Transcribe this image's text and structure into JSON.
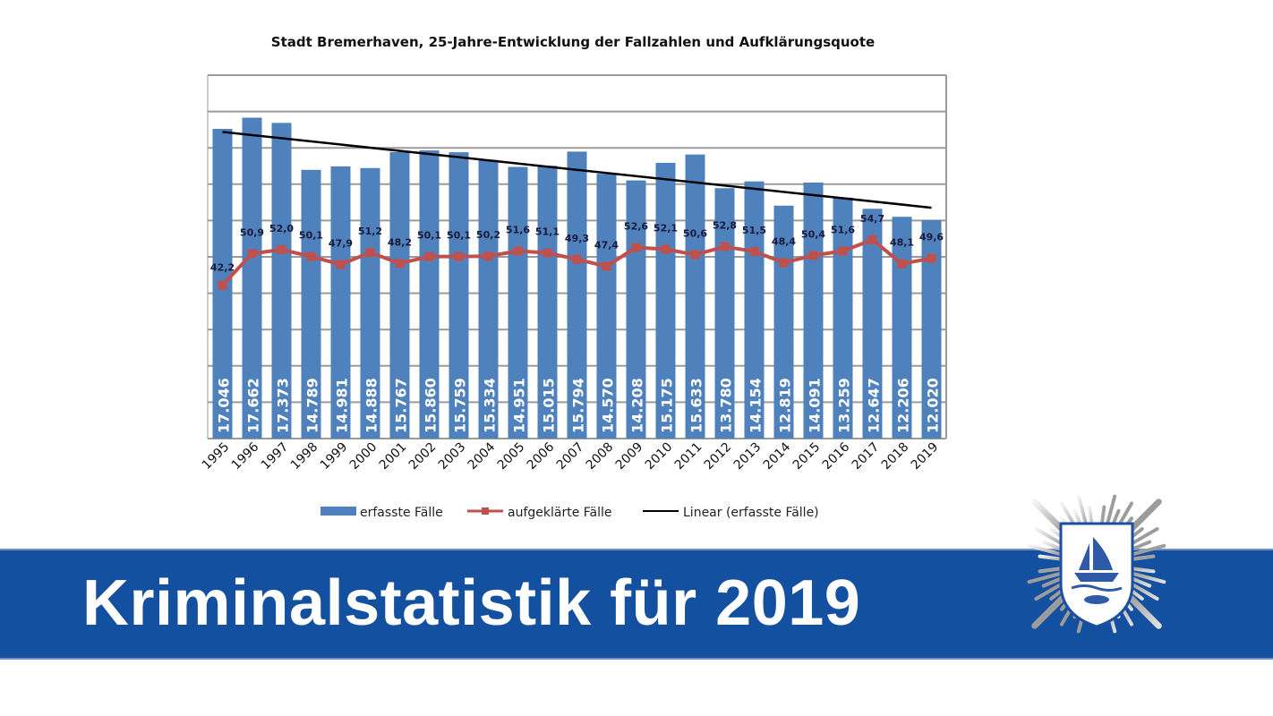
{
  "chart_data": {
    "type": "bar+line",
    "title": "Stadt Bremerhaven, 25-Jahre-Entwicklung der Fallzahlen und Aufklärungsquote",
    "categories": [
      "1995",
      "1996",
      "1997",
      "1998",
      "1999",
      "2000",
      "2001",
      "2002",
      "2003",
      "2004",
      "2005",
      "2006",
      "2007",
      "2008",
      "2009",
      "2010",
      "2011",
      "2012",
      "2013",
      "2014",
      "2015",
      "2016",
      "2017",
      "2018",
      "2019"
    ],
    "series": [
      {
        "name": "erfasste Fälle",
        "kind": "bar",
        "color": "#4f81bd",
        "values": [
          17046,
          17662,
          17373,
          14789,
          14981,
          14888,
          15767,
          15860,
          15759,
          15334,
          14951,
          15015,
          15794,
          14570,
          14208,
          15175,
          15633,
          13780,
          14154,
          12819,
          14091,
          13259,
          12647,
          12206,
          12020
        ],
        "labels": [
          "17.046",
          "17.662",
          "17.373",
          "14.789",
          "14.981",
          "14.888",
          "15.767",
          "15.860",
          "15.759",
          "15.334",
          "14.951",
          "15.015",
          "15.794",
          "14.570",
          "14.208",
          "15.175",
          "15.633",
          "13.780",
          "14.154",
          "12.819",
          "14.091",
          "13.259",
          "12.647",
          "12.206",
          "12.020"
        ]
      },
      {
        "name": "aufgeklärte Fälle",
        "kind": "line",
        "color": "#c0504d",
        "axis": "secondary",
        "values": [
          42.2,
          50.9,
          52.0,
          50.1,
          47.9,
          51.2,
          48.2,
          50.1,
          50.1,
          50.2,
          51.6,
          51.1,
          49.3,
          47.4,
          52.6,
          52.1,
          50.6,
          52.8,
          51.5,
          48.4,
          50.4,
          51.6,
          54.7,
          48.1,
          49.6
        ],
        "labels": [
          "42,2",
          "50,9",
          "52,0",
          "50,1",
          "47,9",
          "51,2",
          "48,2",
          "50,1",
          "50,1",
          "50,2",
          "51,6",
          "51,1",
          "49,3",
          "47,4",
          "52,6",
          "52,1",
          "50,6",
          "52,8",
          "51,5",
          "48,4",
          "50,4",
          "51,6",
          "54,7",
          "48,1",
          "49,6"
        ]
      },
      {
        "name": "Linear (erfasste Fälle)",
        "kind": "trendline",
        "color": "#000000"
      }
    ],
    "ylim": [
      0,
      20000
    ],
    "y2lim": [
      0,
      100
    ],
    "y_ticks_shown": false,
    "grid": true,
    "legend": "bottom"
  },
  "banner": {
    "text": "Kriminalstatistik für 2019",
    "color": "#1450a0"
  },
  "badge": {
    "icon": "police-star-badge-icon"
  }
}
